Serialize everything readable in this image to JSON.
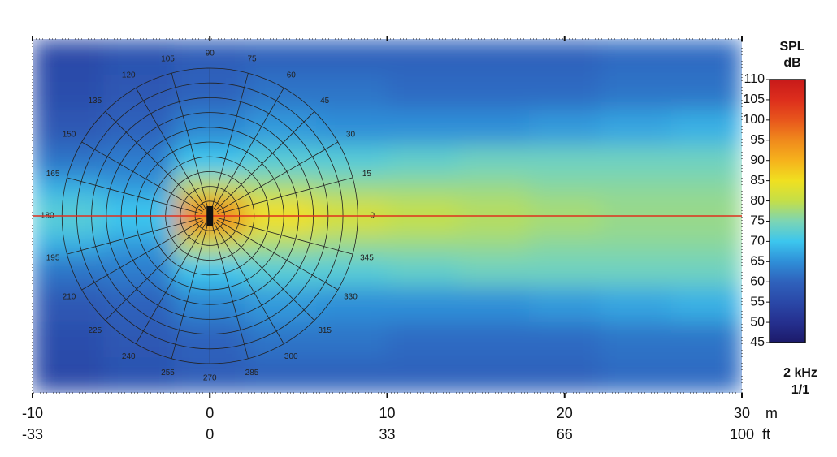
{
  "chart_data": {
    "type": "heatmap",
    "x_unit": "m",
    "x2_unit": "ft",
    "xlim": [
      -10,
      30
    ],
    "xticks": [
      -10,
      0,
      10,
      20,
      30
    ],
    "x2ticks": [
      {
        "value": -10,
        "label": "-33"
      },
      {
        "value": 0,
        "label": "0"
      },
      {
        "value": 10,
        "label": "33"
      },
      {
        "value": 20,
        "label": "66"
      },
      {
        "value": 30,
        "label": "100"
      }
    ],
    "ylim": [
      -10,
      10
    ],
    "x": [
      -8,
      -4,
      0,
      4,
      8,
      12,
      16,
      20,
      24,
      28
    ],
    "y": [
      9,
      7,
      5,
      3,
      1.5,
      0.5,
      -0.5,
      -1.5,
      -3,
      -5,
      -7,
      -9
    ],
    "z": [
      [
        55,
        57,
        59,
        60,
        60,
        60,
        60,
        60,
        61,
        61
      ],
      [
        56,
        58,
        60,
        62,
        62,
        61,
        61,
        61,
        62,
        62
      ],
      [
        58,
        60,
        64,
        66,
        65,
        65,
        65,
        66,
        67,
        68
      ],
      [
        62,
        63,
        70,
        72,
        72,
        73,
        74,
        74,
        74,
        74
      ],
      [
        68,
        66,
        80,
        78,
        77,
        77,
        77,
        76,
        76,
        76
      ],
      [
        72,
        70,
        95,
        85,
        82,
        80,
        79,
        78,
        77,
        77
      ],
      [
        72,
        70,
        95,
        85,
        82,
        80,
        79,
        78,
        77,
        77
      ],
      [
        68,
        66,
        80,
        78,
        77,
        77,
        77,
        76,
        76,
        76
      ],
      [
        62,
        63,
        70,
        72,
        72,
        73,
        74,
        74,
        74,
        74
      ],
      [
        58,
        60,
        64,
        66,
        65,
        65,
        65,
        66,
        67,
        68
      ],
      [
        56,
        58,
        60,
        62,
        62,
        61,
        61,
        61,
        62,
        62
      ],
      [
        55,
        57,
        59,
        60,
        60,
        60,
        60,
        60,
        61,
        61
      ]
    ],
    "polar_angles": [
      0,
      15,
      30,
      45,
      60,
      75,
      90,
      105,
      120,
      135,
      150,
      165,
      180,
      195,
      210,
      225,
      240,
      255,
      270,
      285,
      300,
      315,
      330,
      345
    ],
    "axis_line_color": "#e0301e",
    "colorbar": {
      "title": "SPL",
      "unit": "dB",
      "lim": [
        45,
        110
      ],
      "ticks": [
        45,
        50,
        55,
        60,
        65,
        70,
        75,
        80,
        85,
        90,
        95,
        100,
        105,
        110
      ],
      "colors": [
        "#1c1a6a",
        "#25308f",
        "#2a48a8",
        "#2f62bc",
        "#2f8fd8",
        "#3cc6ee",
        "#7cd5b4",
        "#c4df48",
        "#f0e020",
        "#f6b21c",
        "#f08a1c",
        "#e8561c",
        "#dd2e1c",
        "#c81a1a"
      ]
    },
    "annotations": [
      "2 kHz",
      "1/1"
    ]
  }
}
